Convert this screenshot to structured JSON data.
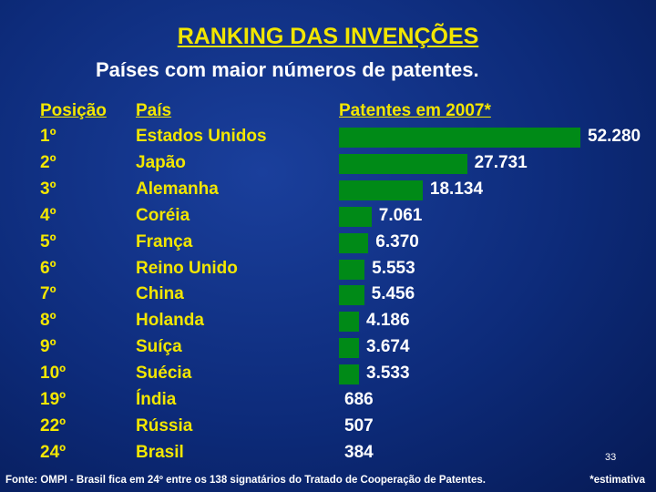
{
  "title": "RANKING DAS INVENÇÕES",
  "subtitle": "Países com maior números de patentes.",
  "headers": {
    "position": "Posição",
    "country": "País",
    "patents": "Patentes em 2007*"
  },
  "chart_data": {
    "type": "bar",
    "orientation": "horizontal",
    "title": "RANKING DAS INVENÇÕES",
    "subtitle": "Países com maior números de patentes.",
    "series_label": "Patentes em 2007*",
    "rows": [
      {
        "position": "1º",
        "country": "Estados Unidos",
        "value": 52280,
        "label": "52.280",
        "bar": true
      },
      {
        "position": "2º",
        "country": "Japão",
        "value": 27731,
        "label": "27.731",
        "bar": true
      },
      {
        "position": "3º",
        "country": "Alemanha",
        "value": 18134,
        "label": "18.134",
        "bar": true
      },
      {
        "position": "4º",
        "country": "Coréia",
        "value": 7061,
        "label": "7.061",
        "bar": true
      },
      {
        "position": "5º",
        "country": "França",
        "value": 6370,
        "label": "6.370",
        "bar": true
      },
      {
        "position": "6º",
        "country": "Reino Unido",
        "value": 5553,
        "label": "5.553",
        "bar": true
      },
      {
        "position": "7º",
        "country": "China",
        "value": 5456,
        "label": "5.456",
        "bar": true
      },
      {
        "position": "8º",
        "country": "Holanda",
        "value": 4186,
        "label": "4.186",
        "bar": true
      },
      {
        "position": "9º",
        "country": "Suíça",
        "value": 3674,
        "label": "3.674",
        "bar": true
      },
      {
        "position": "10º",
        "country": "Suécia",
        "value": 3533,
        "label": "3.533",
        "bar": true
      },
      {
        "position": "19º",
        "country": "Índia",
        "value": 686,
        "label": "686",
        "bar": false
      },
      {
        "position": "22º",
        "country": "Rússia",
        "value": 507,
        "label": "507",
        "bar": false
      },
      {
        "position": "24º",
        "country": "Brasil",
        "value": 384,
        "label": "384",
        "bar": false
      }
    ],
    "colors": {
      "bar": "#008a17",
      "text_primary": "#f2e600",
      "text_values": "#ffffff"
    }
  },
  "footer": "Fonte: OMPI  - Brasil fica em 24º entre os 138 signatários do Tratado de Cooperação de Patentes.",
  "note": "*estimativa",
  "page_number": "33"
}
